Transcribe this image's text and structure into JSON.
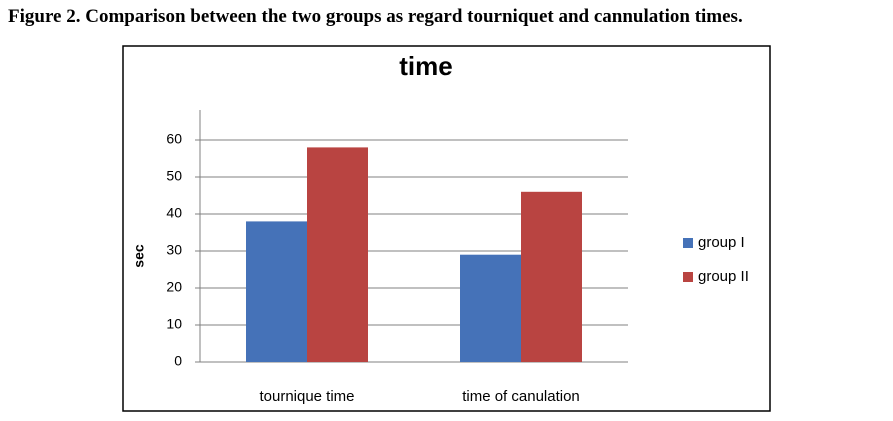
{
  "caption": "Figure 2. Comparison between the two groups as regard tourniquet and cannulation times.",
  "chart_data": {
    "type": "bar",
    "title": "time",
    "y_label": "sec",
    "categories": [
      "tournique time",
      "time of canulation"
    ],
    "series": [
      {
        "name": "group I",
        "color": "#4572b8",
        "values": [
          38,
          29
        ]
      },
      {
        "name": "group II",
        "color": "#b94441",
        "values": [
          58,
          46
        ]
      }
    ],
    "ylim": [
      0,
      60
    ],
    "yticks": [
      0,
      10,
      20,
      30,
      40,
      50,
      60
    ],
    "grid": true,
    "legend": "right"
  }
}
